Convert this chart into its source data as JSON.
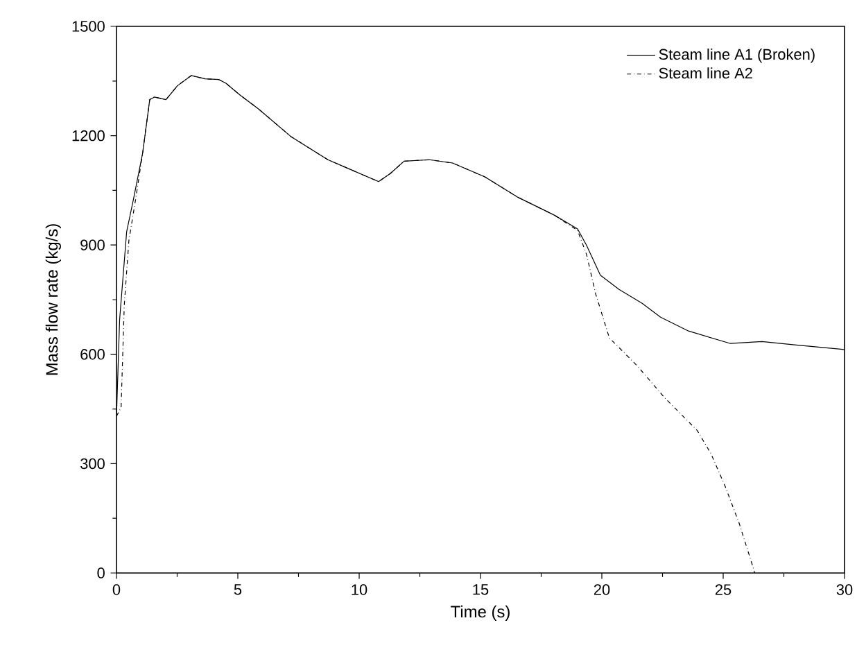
{
  "chart_data": {
    "type": "line",
    "xlabel": "Time (s)",
    "ylabel": "Mass flow rate (kg/s)",
    "xlim": [
      0,
      30
    ],
    "ylim": [
      0,
      1500
    ],
    "xticks": [
      0,
      5,
      10,
      15,
      20,
      25,
      30
    ],
    "yticks": [
      0,
      300,
      600,
      900,
      1200,
      1500
    ],
    "grid": false,
    "legend": "top right",
    "marker": "none",
    "series": [
      {
        "name": "Steam line A1 (Broken)",
        "color": "#000000",
        "line_style": "solid",
        "x": [
          0,
          0.13,
          0.42,
          0.7,
          1.08,
          1.37,
          1.56,
          2.04,
          2.51,
          3.08,
          3.65,
          4.22,
          4.51,
          5.08,
          5.84,
          7.18,
          8.71,
          10.8,
          11.28,
          11.85,
          12.9,
          13.85,
          15.18,
          16.51,
          18.04,
          19.0,
          19.37,
          19.94,
          20.71,
          21.66,
          22.42,
          23.57,
          25.28,
          26.6,
          27.94,
          30
        ],
        "values": [
          430,
          696,
          937,
          1026,
          1153,
          1299,
          1306,
          1299,
          1337,
          1365,
          1356,
          1354,
          1344,
          1312,
          1274,
          1198,
          1134,
          1074,
          1096,
          1130,
          1134,
          1125,
          1087,
          1032,
          982,
          944,
          899,
          817,
          778,
          740,
          702,
          664,
          630,
          635,
          626,
          613
        ]
      },
      {
        "name": "Steam line A2",
        "color": "#000000",
        "line_style": "dashdot",
        "x": [
          0,
          0.19,
          0.32,
          0.51,
          0.79,
          1.08,
          1.37,
          1.56,
          2.04,
          2.51,
          3.08,
          3.65,
          4.22,
          4.51,
          5.08,
          5.84,
          7.18,
          8.71,
          10.8,
          11.28,
          11.85,
          12.9,
          13.85,
          15.18,
          16.51,
          18.04,
          19.0,
          19.37,
          19.74,
          20.31,
          21.45,
          22.6,
          23.93,
          24.5,
          25.08,
          25.66,
          26.23,
          26.3
        ],
        "values": [
          430,
          454,
          734,
          912,
          1026,
          1153,
          1299,
          1306,
          1299,
          1337,
          1365,
          1356,
          1354,
          1344,
          1312,
          1274,
          1198,
          1134,
          1074,
          1096,
          1130,
          1134,
          1125,
          1087,
          1032,
          982,
          940,
          874,
          767,
          645,
          569,
          480,
          391,
          327,
          238,
          136,
          16,
          0
        ]
      }
    ]
  }
}
